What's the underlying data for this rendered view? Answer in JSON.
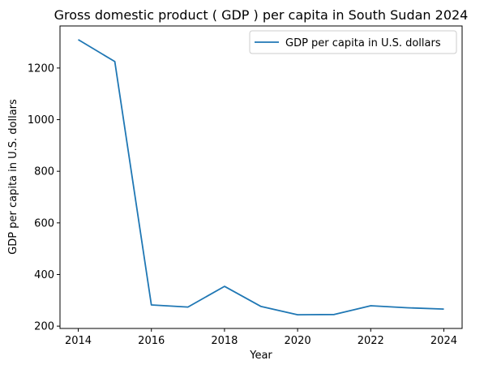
{
  "chart_data": {
    "type": "line",
    "title": "Gross domestic product ( GDP ) per capita in South Sudan 2024",
    "xlabel": "Year",
    "ylabel": "GDP per capita in U.S. dollars",
    "x": [
      2014,
      2015,
      2016,
      2017,
      2018,
      2019,
      2020,
      2021,
      2022,
      2023,
      2024
    ],
    "series": [
      {
        "name": "GDP per capita in U.S. dollars",
        "color": "#1f77b4",
        "values": [
          1310,
          1225,
          282,
          274,
          354,
          276,
          244,
          245,
          279,
          271,
          266
        ]
      }
    ],
    "xticks": [
      2014,
      2016,
      2018,
      2020,
      2022,
      2024
    ],
    "yticks": [
      200,
      400,
      600,
      800,
      1000,
      1200
    ],
    "xlim": [
      2013.5,
      2024.5
    ],
    "ylim": [
      191,
      1363
    ],
    "legend": "top-right",
    "grid": false
  }
}
